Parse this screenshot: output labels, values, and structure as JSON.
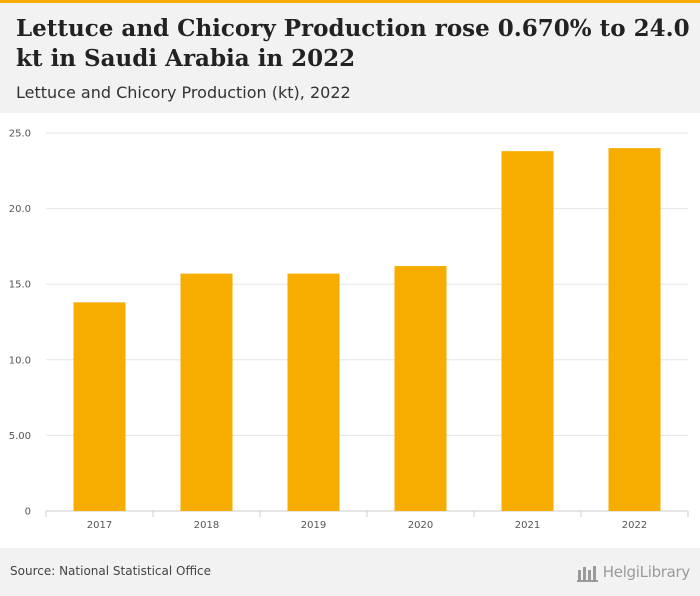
{
  "header": {
    "title": "Lettuce and Chicory Production rose 0.670% to 24.0 kt in Saudi Arabia in 2022",
    "subtitle": "Lettuce and Chicory Production (kt), 2022"
  },
  "footer": {
    "source": "Source: National Statistical Office",
    "brand": "HelgiLibrary"
  },
  "colors": {
    "bar": "#f6ad00",
    "accent": "#f6ad00",
    "grid": "#e6e6e6"
  },
  "chart_data": {
    "type": "bar",
    "categories": [
      "2017",
      "2018",
      "2019",
      "2020",
      "2021",
      "2022"
    ],
    "values": [
      13.8,
      15.7,
      15.7,
      16.2,
      23.8,
      24.0
    ],
    "ylim": [
      0,
      25
    ],
    "yticks": [
      0,
      5,
      10,
      15,
      20,
      25
    ],
    "ytick_labels": [
      "0",
      "5.00",
      "10.0",
      "15.0",
      "20.0",
      "25.0"
    ],
    "grid": true,
    "xlabel": "",
    "ylabel": ""
  }
}
